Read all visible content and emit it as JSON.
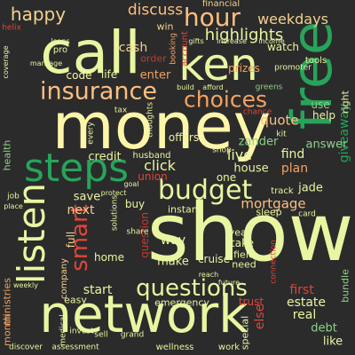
{
  "palette": {
    "background": "#2b2b2b",
    "light_yellow": "#e9f5a1",
    "pale_yellow": "#fdf6a8",
    "orange": "#f4a261",
    "peach": "#fdbf82",
    "red": "#e0453a",
    "dark_red": "#c43b2f",
    "green": "#27a45a",
    "light_green": "#8fd18a",
    "tan": "#f3d28f"
  },
  "words": [
    {
      "id": "w-show",
      "text": "show"
    },
    {
      "id": "w-money",
      "text": "money"
    },
    {
      "id": "w-network",
      "text": "network"
    },
    {
      "id": "w-call",
      "text": "call"
    },
    {
      "id": "w-free",
      "text": "free"
    },
    {
      "id": "w-ken",
      "text": "ken"
    },
    {
      "id": "w-steps",
      "text": "steps"
    },
    {
      "id": "w-insurance",
      "text": "insurance"
    },
    {
      "id": "w-listen",
      "text": "listen"
    },
    {
      "id": "w-budget",
      "text": "budget"
    },
    {
      "id": "w-questions",
      "text": "questions"
    },
    {
      "id": "w-choices",
      "text": "choices"
    },
    {
      "id": "w-hour",
      "text": "hour"
    },
    {
      "id": "w-smart",
      "text": "smart"
    },
    {
      "id": "w-highlights",
      "text": "highlights"
    },
    {
      "id": "w-happy",
      "text": "happy"
    },
    {
      "id": "w-discuss",
      "text": "discuss"
    },
    {
      "id": "w-weekdays",
      "text": "weekdays"
    },
    {
      "id": "w-giveaway",
      "text": "giveaway"
    },
    {
      "id": "w-quote",
      "text": "quote"
    },
    {
      "id": "w-answer",
      "text": "answer"
    },
    {
      "id": "w-click",
      "text": "click"
    },
    {
      "id": "w-mortgage",
      "text": "mortgage"
    },
    {
      "id": "w-cash",
      "text": "cash"
    },
    {
      "id": "w-enter",
      "text": "enter"
    },
    {
      "id": "w-life",
      "text": "life"
    },
    {
      "id": "w-code",
      "text": "code"
    },
    {
      "id": "w-credit",
      "text": "credit"
    },
    {
      "id": "w-live",
      "text": "live"
    },
    {
      "id": "w-find",
      "text": "find"
    },
    {
      "id": "w-plan",
      "text": "plan"
    },
    {
      "id": "w-zander",
      "text": "zander"
    },
    {
      "id": "w-house",
      "text": "house"
    },
    {
      "id": "w-one",
      "text": "one"
    },
    {
      "id": "w-jade",
      "text": "jade"
    },
    {
      "id": "w-next",
      "text": "next"
    },
    {
      "id": "w-save",
      "text": "save"
    },
    {
      "id": "w-buy",
      "text": "buy"
    },
    {
      "id": "w-start",
      "text": "start"
    },
    {
      "id": "w-way",
      "text": "way"
    },
    {
      "id": "w-make",
      "text": "make"
    },
    {
      "id": "w-home",
      "text": "home"
    },
    {
      "id": "w-cruise",
      "text": "cruise"
    },
    {
      "id": "w-take",
      "text": "take"
    },
    {
      "id": "w-field",
      "text": "field"
    },
    {
      "id": "w-need",
      "text": "need"
    },
    {
      "id": "w-first",
      "text": "first"
    },
    {
      "id": "w-estate",
      "text": "estate"
    },
    {
      "id": "w-real",
      "text": "real"
    },
    {
      "id": "w-debt",
      "text": "debt"
    },
    {
      "id": "w-like",
      "text": "like"
    },
    {
      "id": "w-else",
      "text": "else"
    },
    {
      "id": "w-trust",
      "text": "trust"
    },
    {
      "id": "w-ministries",
      "text": "ministries"
    },
    {
      "id": "w-month",
      "text": "month"
    },
    {
      "id": "w-health",
      "text": "health"
    },
    {
      "id": "w-full",
      "text": "full"
    },
    {
      "id": "w-question",
      "text": "question"
    },
    {
      "id": "w-win",
      "text": "win"
    },
    {
      "id": "w-order",
      "text": "order"
    },
    {
      "id": "w-pro",
      "text": "pro"
    },
    {
      "id": "w-watch",
      "text": "watch"
    },
    {
      "id": "w-financial",
      "text": "financial"
    },
    {
      "id": "w-prizes",
      "text": "prizes"
    },
    {
      "id": "w-help",
      "text": "help"
    },
    {
      "id": "w-use",
      "text": "use"
    },
    {
      "id": "w-right",
      "text": "right"
    },
    {
      "id": "w-offers",
      "text": "offers"
    },
    {
      "id": "w-union",
      "text": "union"
    },
    {
      "id": "w-husband",
      "text": "husband"
    },
    {
      "id": "w-instant",
      "text": "instant"
    },
    {
      "id": "w-sleep",
      "text": "sleep"
    },
    {
      "id": "w-year",
      "text": "year"
    },
    {
      "id": "w-emergency",
      "text": "emergency"
    },
    {
      "id": "w-wellness",
      "text": "wellness"
    },
    {
      "id": "w-work",
      "text": "work"
    },
    {
      "id": "w-special",
      "text": "special"
    },
    {
      "id": "w-easy",
      "text": "easy"
    },
    {
      "id": "w-company",
      "text": "company"
    },
    {
      "id": "w-bundle",
      "text": "bundle"
    },
    {
      "id": "w-account",
      "text": "account"
    },
    {
      "id": "w-booking",
      "text": "booking"
    },
    {
      "id": "w-tools",
      "text": "tools"
    },
    {
      "id": "w-track",
      "text": "track"
    },
    {
      "id": "w-gifts",
      "text": "gifts"
    },
    {
      "id": "w-increase",
      "text": "increase"
    },
    {
      "id": "w-income",
      "text": "income"
    },
    {
      "id": "w-promoter",
      "text": "promoter"
    },
    {
      "id": "w-greens",
      "text": "greens"
    },
    {
      "id": "w-build",
      "text": "build"
    },
    {
      "id": "w-afford",
      "text": "afford"
    },
    {
      "id": "w-chance",
      "text": "chance"
    },
    {
      "id": "w-kit",
      "text": "kit"
    },
    {
      "id": "w-shop",
      "text": "shop"
    },
    {
      "id": "w-thoughts",
      "text": "thoughts"
    },
    {
      "id": "w-solutions",
      "text": "solutions"
    },
    {
      "id": "w-share",
      "text": "share"
    },
    {
      "id": "w-connection",
      "text": "connection"
    },
    {
      "id": "w-card",
      "text": "card"
    },
    {
      "id": "w-discover",
      "text": "discover"
    },
    {
      "id": "w-assessment",
      "text": "assessment"
    },
    {
      "id": "w-grand",
      "text": "grand"
    },
    {
      "id": "w-medical",
      "text": "medical"
    },
    {
      "id": "w-sell",
      "text": "sell"
    },
    {
      "id": "w-invest",
      "text": "invest"
    },
    {
      "id": "w-job",
      "text": "job"
    },
    {
      "id": "w-place",
      "text": "place"
    },
    {
      "id": "w-helix",
      "text": "helix"
    },
    {
      "id": "w-coverage",
      "text": "coverage"
    },
    {
      "id": "w-every",
      "text": "every"
    },
    {
      "id": "w-tax",
      "text": "tax"
    },
    {
      "id": "w-marriage",
      "text": "marriage"
    },
    {
      "id": "w-loans",
      "text": "loans"
    },
    {
      "id": "w-protect",
      "text": "protect"
    },
    {
      "id": "w-goal",
      "text": "goal"
    },
    {
      "id": "w-weekly",
      "text": "weekly"
    },
    {
      "id": "w-future",
      "text": "future"
    },
    {
      "id": "w-reach",
      "text": "reach"
    }
  ]
}
